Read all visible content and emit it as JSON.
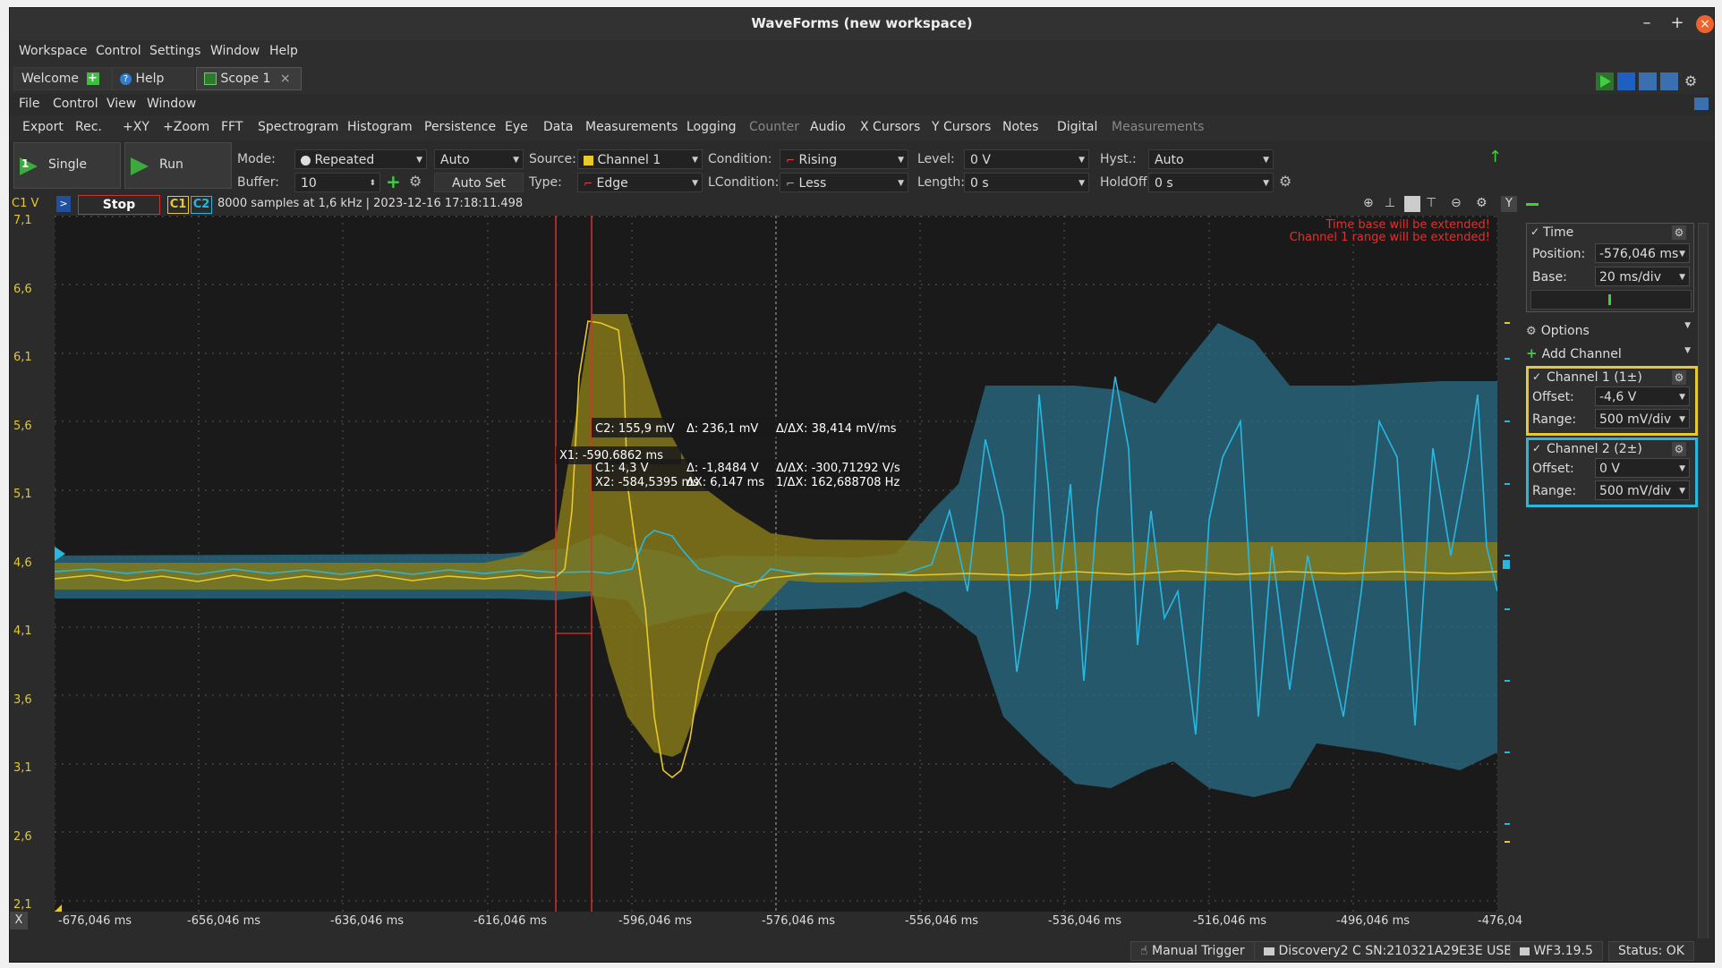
{
  "window": {
    "title": "WaveForms (new workspace)",
    "minimize": "–",
    "maximize": "+",
    "close": "×"
  },
  "main_menu": [
    "Workspace",
    "Control",
    "Settings",
    "Window",
    "Help"
  ],
  "tabs": [
    {
      "label": "Welcome"
    },
    {
      "label": "Help"
    },
    {
      "label": "Scope 1",
      "close": "×"
    }
  ],
  "sub_menu": [
    "File",
    "Control",
    "View",
    "Window"
  ],
  "toolbar": {
    "items": [
      "Export",
      "Rec.",
      "+XY",
      "+Zoom",
      "FFT",
      "Spectrogram",
      "Histogram",
      "Persistence",
      "Eye",
      "Data",
      "Measurements",
      "Logging"
    ],
    "disabled": [
      "Counter"
    ],
    "items2": [
      "Audio",
      "X Cursors",
      "Y Cursors",
      "Notes",
      "Digital"
    ],
    "disabled2": [
      "Measurements"
    ]
  },
  "controls": {
    "single_label": "Single",
    "single_badge": "1",
    "run_label": "Run",
    "mode_label": "Mode:",
    "mode_value": "Repeated",
    "auto_value": "Auto",
    "source_label": "Source:",
    "source_value": "Channel 1",
    "condition_label": "Condition:",
    "condition_value": "Rising",
    "level_label": "Level:",
    "level_value": "0 V",
    "hyst_label": "Hyst.:",
    "hyst_value": "Auto",
    "buffer_label": "Buffer:",
    "buffer_value": "10",
    "autoset_label": "Auto Set",
    "type_label": "Type:",
    "type_value": "Edge",
    "lcondition_label": "LCondition:",
    "lcondition_value": "Less",
    "length_label": "Length:",
    "length_value": "0 s",
    "holdoff_label": "HoldOff:",
    "holdoff_value": "0 s"
  },
  "status_strip": {
    "unit": "C1 V",
    "stop": "Stop",
    "c1": "C1",
    "c2": "C2",
    "info": "8000 samples at 1,6 kHz | 2023-12-16 17:18:11.498",
    "y_button": "Y"
  },
  "warnings": [
    "Time base will be extended!",
    "Channel 1 range will be extended!"
  ],
  "plot": {
    "y_ticks": [
      "7,1",
      "6,6",
      "6,1",
      "5,6",
      "5,1",
      "4,6",
      "4,1",
      "3,6",
      "3,1",
      "2,6",
      "2,1"
    ],
    "x_ticks": [
      "-676,046 ms",
      "-656,046 ms",
      "-636,046 ms",
      "-616,046 ms",
      "-596,046 ms",
      "-576,046 ms",
      "-556,046 ms",
      "-536,046 ms",
      "-516,046 ms",
      "-496,046 ms",
      "-476,04"
    ],
    "x_close": "X",
    "cursor": {
      "x1": "X1: -590,6862 ms",
      "c2": "C2: 155,9 mV",
      "d_c2": "Δ: 236,1 mV",
      "ddx_c2": "Δ/ΔX: 38,414 mV/ms",
      "c1": "C1: 4,3 V",
      "d_c1": "Δ: -1,8484 V",
      "ddx_c1": "Δ/ΔX: -300,71292 V/s",
      "x2": "X2: -584,5395 ms",
      "dx": "ΔX: 6,147 ms",
      "inv_dx": "1/ΔX: 162,688708 Hz"
    },
    "colors": {
      "ch1": "#e8c82a",
      "ch2": "#29b7e0",
      "cursor": "#d93030"
    }
  },
  "panel": {
    "time": {
      "title": "Time",
      "check": "✓",
      "position_label": "Position:",
      "position_value": "-576,046 ms",
      "base_label": "Base:",
      "base_value": "20 ms/div"
    },
    "options_label": "Options",
    "add_channel_label": "Add Channel",
    "channel1": {
      "title": "Channel 1 (1±)",
      "check": "✓",
      "offset_label": "Offset:",
      "offset_value": "-4,6 V",
      "range_label": "Range:",
      "range_value": "500 mV/div"
    },
    "channel2": {
      "title": "Channel 2 (2±)",
      "check": "✓",
      "offset_label": "Offset:",
      "offset_value": "0 V",
      "range_label": "Range:",
      "range_value": "500 mV/div"
    }
  },
  "statusbar": {
    "trigger": "Manual Trigger",
    "device": "Discovery2 C SN:210321A29E3E USB",
    "version": "WF3.19.5",
    "status": "Status: OK"
  }
}
